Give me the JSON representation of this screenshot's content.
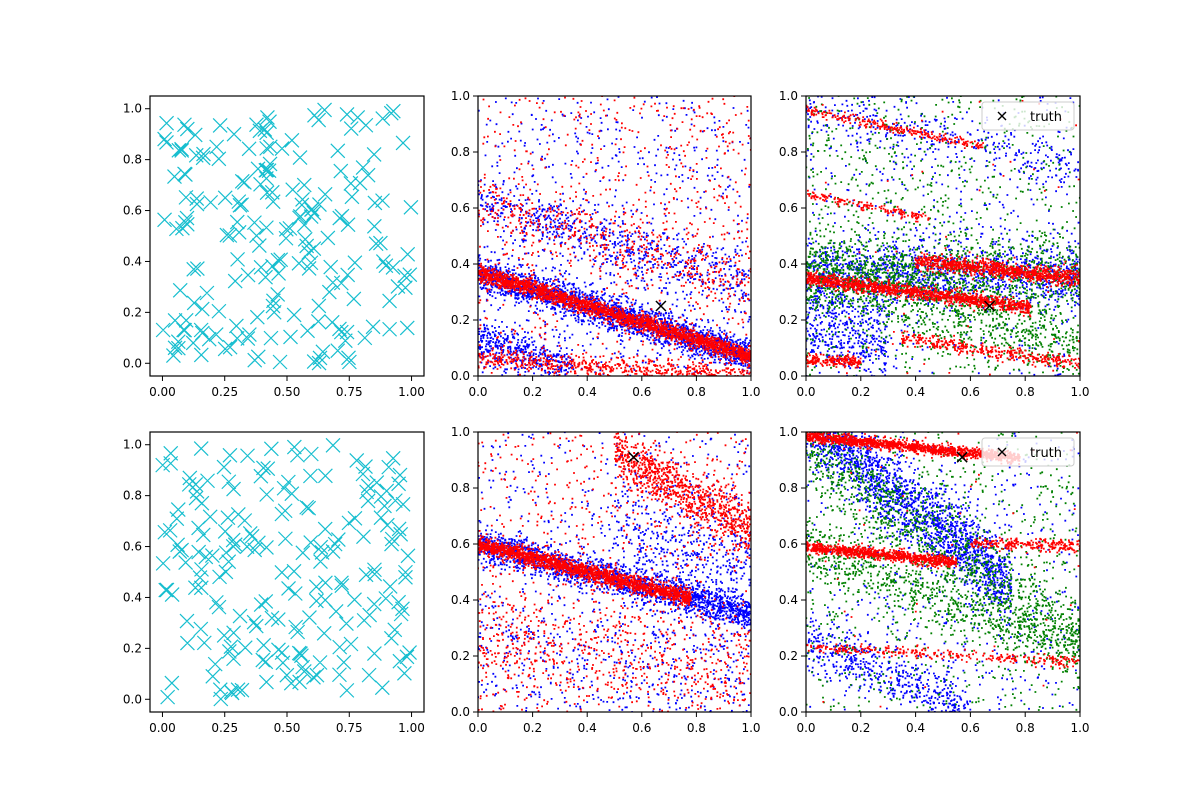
{
  "chart_data": [
    {
      "type": "scatter",
      "marker": "x",
      "xlim": [
        -0.05,
        1.05
      ],
      "ylim": [
        -0.05,
        1.05
      ],
      "xticks": [
        "0.00",
        "0.25",
        "0.50",
        "0.75",
        "1.00"
      ],
      "yticks": [
        "0.0",
        "0.2",
        "0.4",
        "0.6",
        "0.8",
        "1.0"
      ],
      "grid": false,
      "series": [
        {
          "color": "#17becf",
          "count": 200,
          "distribution": "uniform",
          "seed": 11
        }
      ]
    },
    {
      "type": "scatter",
      "marker": "dot",
      "xlim": [
        0,
        1
      ],
      "ylim": [
        0,
        1
      ],
      "xticks": [
        "0.0",
        "0.2",
        "0.4",
        "0.6",
        "0.8",
        "1.0"
      ],
      "yticks": [
        "0.0",
        "0.2",
        "0.4",
        "0.6",
        "0.8",
        "1.0"
      ],
      "grid": false,
      "truth": {
        "x": 0.67,
        "y": 0.25
      },
      "series": [
        {
          "color": "#0000ff",
          "seed": 21,
          "bands": [
            {
              "y0": 0.37,
              "slope": -0.3,
              "spread": 0.03,
              "n": 2200
            },
            {
              "y0": 0.62,
              "slope": -0.3,
              "spread": 0.05,
              "n": 600
            },
            {
              "y0": 0.13,
              "slope": -0.3,
              "spread": 0.04,
              "n": 400,
              "xmax": 0.35
            }
          ],
          "noise": 700
        },
        {
          "color": "#ff0000",
          "seed": 22,
          "bands": [
            {
              "y0": 0.37,
              "slope": -0.3,
              "spread": 0.015,
              "n": 2200
            },
            {
              "y0": 0.62,
              "slope": -0.3,
              "spread": 0.05,
              "n": 400
            },
            {
              "y0": 0.06,
              "slope": -0.06,
              "spread": 0.02,
              "n": 600
            }
          ],
          "noise": 700
        }
      ]
    },
    {
      "type": "scatter",
      "marker": "dot",
      "xlim": [
        0,
        1
      ],
      "ylim": [
        0,
        1
      ],
      "xticks": [
        "0.0",
        "0.2",
        "0.4",
        "0.6",
        "0.8",
        "1.0"
      ],
      "yticks": [
        "0.0",
        "0.2",
        "0.4",
        "0.6",
        "0.8",
        "1.0"
      ],
      "grid": false,
      "legend": {
        "label": "truth",
        "position": "upper right"
      },
      "truth": {
        "x": 0.67,
        "y": 0.25
      },
      "series": [
        {
          "color": "#0000ff",
          "seed": 31,
          "bands": [
            {
              "y0": 0.36,
              "slope": 0.0,
              "spread": 0.06,
              "n": 1200
            },
            {
              "y0": 0.2,
              "slope": -0.3,
              "spread": 0.08,
              "n": 400,
              "xmax": 0.3
            },
            {
              "y0": 0.95,
              "slope": -0.2,
              "spread": 0.05,
              "n": 300
            }
          ],
          "noise": 500
        },
        {
          "color": "#008000",
          "seed": 32,
          "bands": [
            {
              "y0": 0.36,
              "slope": 0.0,
              "spread": 0.07,
              "n": 1000
            },
            {
              "y0": 0.4,
              "slope": -0.3,
              "spread": 0.06,
              "n": 700
            }
          ],
          "noise": 900
        },
        {
          "color": "#ff0000",
          "seed": 33,
          "bands": [
            {
              "y0": 0.35,
              "slope": -0.13,
              "spread": 0.012,
              "n": 1200,
              "xmax": 0.82
            },
            {
              "y0": 0.45,
              "slope": -0.1,
              "spread": 0.015,
              "n": 900,
              "xmin": 0.4
            },
            {
              "y0": 0.95,
              "slope": -0.2,
              "spread": 0.008,
              "n": 250,
              "xmax": 0.65
            },
            {
              "y0": 0.65,
              "slope": -0.2,
              "spread": 0.008,
              "n": 150,
              "xmax": 0.45
            },
            {
              "y0": 0.19,
              "slope": -0.15,
              "spread": 0.012,
              "n": 350,
              "xmin": 0.35
            },
            {
              "y0": 0.06,
              "slope": -0.05,
              "spread": 0.01,
              "n": 200,
              "xmax": 0.2
            }
          ],
          "noise": 50
        }
      ]
    },
    {
      "type": "scatter",
      "marker": "x",
      "xlim": [
        -0.05,
        1.05
      ],
      "ylim": [
        -0.05,
        1.05
      ],
      "xticks": [
        "0.00",
        "0.25",
        "0.50",
        "0.75",
        "1.00"
      ],
      "yticks": [
        "0.0",
        "0.2",
        "0.4",
        "0.6",
        "0.8",
        "1.0"
      ],
      "grid": false,
      "series": [
        {
          "color": "#17becf",
          "count": 200,
          "distribution": "uniform",
          "seed": 41
        }
      ]
    },
    {
      "type": "scatter",
      "marker": "dot",
      "xlim": [
        0,
        1
      ],
      "ylim": [
        0,
        1
      ],
      "xticks": [
        "0.0",
        "0.2",
        "0.4",
        "0.6",
        "0.8",
        "1.0"
      ],
      "yticks": [
        "0.0",
        "0.2",
        "0.4",
        "0.6",
        "0.8",
        "1.0"
      ],
      "grid": false,
      "truth": {
        "x": 0.57,
        "y": 0.91
      },
      "series": [
        {
          "color": "#0000ff",
          "seed": 51,
          "bands": [
            {
              "y0": 0.6,
              "slope": -0.25,
              "spread": 0.03,
              "n": 1800
            },
            {
              "y0": 0.8,
              "slope": -0.3,
              "spread": 0.1,
              "n": 400,
              "xmin": 0.5
            },
            {
              "y0": 0.25,
              "slope": -0.1,
              "spread": 0.1,
              "n": 300
            }
          ],
          "noise": 600
        },
        {
          "color": "#ff0000",
          "seed": 52,
          "bands": [
            {
              "y0": 0.6,
              "slope": -0.25,
              "spread": 0.015,
              "n": 1800,
              "xmax": 0.78
            },
            {
              "y0": 1.2,
              "slope": -0.55,
              "spread": 0.05,
              "n": 900,
              "xmin": 0.5
            },
            {
              "y0": 0.25,
              "slope": -0.1,
              "spread": 0.1,
              "n": 500
            }
          ],
          "noise": 700
        }
      ]
    },
    {
      "type": "scatter",
      "marker": "dot",
      "xlim": [
        0,
        1
      ],
      "ylim": [
        0,
        1
      ],
      "xticks": [
        "0.0",
        "0.2",
        "0.4",
        "0.6",
        "0.8",
        "1.0"
      ],
      "yticks": [
        "0.0",
        "0.2",
        "0.4",
        "0.6",
        "0.8",
        "1.0"
      ],
      "grid": false,
      "legend": {
        "label": "truth",
        "position": "upper right"
      },
      "truth": {
        "x": 0.57,
        "y": 0.91
      },
      "series": [
        {
          "color": "#0000ff",
          "seed": 61,
          "bands": [
            {
              "y0": 1.05,
              "slope": -0.8,
              "spread": 0.07,
              "n": 1800,
              "xmax": 0.75
            },
            {
              "y0": 0.25,
              "slope": -0.4,
              "spread": 0.05,
              "n": 500,
              "xmax": 0.6
            }
          ],
          "noise": 500
        },
        {
          "color": "#008000",
          "seed": 62,
          "bands": [
            {
              "y0": 0.95,
              "slope": -0.7,
              "spread": 0.08,
              "n": 1000
            },
            {
              "y0": 0.58,
              "slope": -0.35,
              "spread": 0.05,
              "n": 700
            }
          ],
          "noise": 700
        },
        {
          "color": "#ff0000",
          "seed": 63,
          "bands": [
            {
              "y0": 0.985,
              "slope": -0.1,
              "spread": 0.01,
              "n": 1300,
              "xmax": 0.78
            },
            {
              "y0": 0.59,
              "slope": -0.1,
              "spread": 0.01,
              "n": 900,
              "xmax": 0.55
            },
            {
              "y0": 0.63,
              "slope": -0.04,
              "spread": 0.01,
              "n": 250,
              "xmin": 0.6
            },
            {
              "y0": 0.23,
              "slope": -0.05,
              "spread": 0.01,
              "n": 300
            }
          ],
          "noise": 40
        }
      ]
    }
  ]
}
